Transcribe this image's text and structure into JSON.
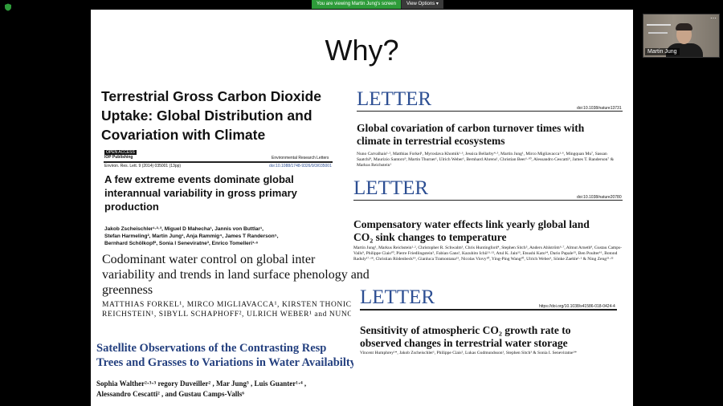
{
  "banner": {
    "message": "You are viewing Martin Jung's screen",
    "options": "View Options ▾"
  },
  "slide": {
    "title": "Why?",
    "paper1": {
      "title_lines": [
        "Terrestrial Gross Carbon Dioxide",
        "Uptake: Global Distribution and",
        "Covariation with Climate"
      ]
    },
    "paper2": {
      "header_left1": "OPEN ACCESS",
      "header_left2": "IOP Publishing",
      "header_right": "Environmental Research Letters",
      "citation": "Environ. Res. Lett. 9 (2014) 035001 (13pp)",
      "doi": "doi:10.1088/1748-9326/9/3/035001",
      "title_lines": [
        "A few extreme events dominate global",
        "interannual variability in gross primary",
        "production"
      ],
      "authors_lines": [
        "Jakob Zscheischler¹·²·³, Miguel D Mahecha¹, Jannis von Buttlar¹,",
        "Stefan Harmeling², Martin Jung¹, Anja Rammig⁴, James T Randerson⁵,",
        "Bernhard Schölkopf², Sonia I Seneviratne³, Enrico Tomelleri¹·⁶"
      ]
    },
    "paper3": {
      "title_lines": [
        "Codominant water control on global inter",
        "variability and trends in land surface phenology and",
        "greenness"
      ],
      "authors_lines": [
        "MATTHIAS FORKEL¹, MIRCO MIGLIAVACCA¹, KIRSTEN THONIC",
        "REICHSTEIN¹, SIBYLL SCHAPHOFF², ULRICH WEBER¹ and NUNO"
      ]
    },
    "paper4": {
      "title_lines": [
        "Satellite Observations of the Contrasting Resp",
        "Trees and Grasses to Variations in Water Availabilty"
      ],
      "authors_lines": [
        "Sophia Walther²·³·³     regory Duveiller²    , Mar      Jung³   , Luis Guanter¹·⁴    ,",
        "Alessandro Cescatti²     , and Gustau Camps-Valls⁶"
      ]
    },
    "letter1": {
      "label": "LETTER",
      "doi": "doi:10.1038/nature13731",
      "title_lines": [
        "Global covariation of carbon turnover times with",
        "climate in terrestrial ecosystems"
      ],
      "authors": "Nuno Carvalhais¹·², Matthias Forkel¹, Myroslava Khomik¹·³, Jessica Bellarby⁴·⁵, Martin Jung¹, Mirco Migliavacca¹·⁶, Mingquan Mu⁷, Sassan Saatchi⁸, Maurizio Santoro⁹, Martin Thurner¹, Ulrich Weber¹, Bernhard Ahrens¹, Christian Beer¹·¹⁰, Alessandro Cescatti⁶, James T. Randerson⁷ & Markus Reichstein¹"
    },
    "letter2": {
      "label": "LETTER",
      "doi": "doi:10.1038/nature20780",
      "title_lines": [
        "Compensatory water effects link yearly global land",
        "CO₂ sink changes to temperature"
      ],
      "authors": "Martin Jung¹, Markus Reichstein¹·², Christopher R. Schwalm³, Chris Huntingford⁴, Stephen Sitch⁵, Anders Ahlström⁶·⁷, Almut Arneth⁸, Gustau Camps-Valls⁹, Philippe Ciais¹⁰, Pierre Friedlingstein⁵, Fabian Gans¹, Kazuhito Ichii¹¹·¹², Atul K. Jain¹³, Etsushi Kato¹⁴, Dario Papale¹⁵, Ben Poulter¹⁶, Botond Raduly¹⁷·¹⁸, Christian Rödenbeck¹⁹, Gianluca Tramontana¹⁵, Nicolas Viovy¹⁰, Ying-Ping Wang²⁰, Ulrich Weber¹, Sönke Zaehle¹·² & Ning Zeng²¹·²²"
    },
    "letter3": {
      "label": "LETTER",
      "doi": "https://doi.org/10.1038/s41586-018-0424-4",
      "title_lines": [
        "Sensitivity of atmospheric CO₂ growth rate to",
        "observed changes in terrestrial water storage"
      ],
      "authors": "Vincent Humphrey¹*, Jakob Zscheischler¹, Philippe Ciais², Lukas Gudmundsson¹, Stephen Sitch³ & Sonia I. Seneviratne¹*"
    }
  },
  "video": {
    "name": "Martin Jung"
  },
  "colors": {
    "banner_green": "#2e9c3a",
    "letter_blue": "#2d4f93",
    "paper4_blue": "#24407f"
  }
}
